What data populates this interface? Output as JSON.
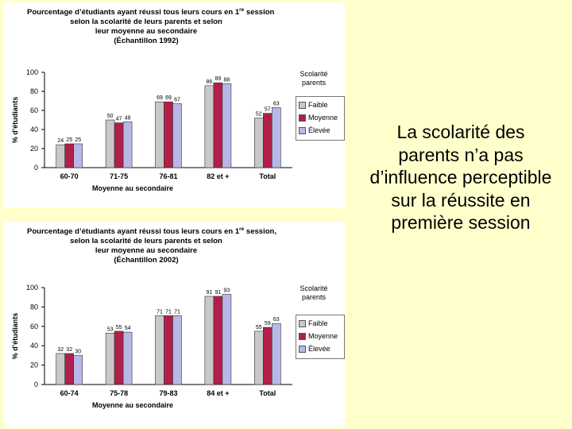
{
  "colors": {
    "background": "#FFFFCC",
    "faible": "#c8c8c8",
    "moyenne": "#b0204a",
    "elevee": "#b8b8e8"
  },
  "caption": "La scolarité des parents n’a pas d’influence perceptible sur la réussite en première session",
  "chart_data": [
    {
      "type": "bar",
      "title_lines": [
        "Pourcentage d’étudiants ayant réussi tous leurs cours en 1re session",
        "selon la scolarité de leurs parents et selon",
        "leur moyenne au secondaire",
        "(Échantillon 1992)"
      ],
      "ylabel": "% d’étudiants",
      "xlabel": "Moyenne au secondaire",
      "ylim": [
        0,
        100
      ],
      "yticks": [
        0,
        20,
        40,
        60,
        80,
        100
      ],
      "categories": [
        "60-70",
        "71-75",
        "76-81",
        "82 et +",
        "Total"
      ],
      "legend_title": "Scolarité parents",
      "series": [
        {
          "name": "Faible",
          "values": [
            24,
            50,
            69,
            86,
            52
          ]
        },
        {
          "name": "Moyenne",
          "values": [
            25,
            47,
            69,
            89,
            57
          ]
        },
        {
          "name": "Élevée",
          "values": [
            25,
            48,
            67,
            88,
            63
          ]
        }
      ]
    },
    {
      "type": "bar",
      "title_lines": [
        "Pourcentage d’étudiants ayant réussi tous leurs cours en 1re session,",
        "selon la scolarité de leurs parents et selon",
        "leur moyenne au secondaire",
        "(Échantillon 2002)"
      ],
      "ylabel": "% d’étudiants",
      "xlabel": "Moyenne au secondaire",
      "ylim": [
        0,
        100
      ],
      "yticks": [
        0,
        20,
        40,
        60,
        80,
        100
      ],
      "categories": [
        "60-74",
        "75-78",
        "79-83",
        "84 et +",
        "Total"
      ],
      "legend_title": "Scolarité parents",
      "series": [
        {
          "name": "Faible",
          "values": [
            32,
            53,
            71,
            91,
            55
          ]
        },
        {
          "name": "Moyenne",
          "values": [
            32,
            55,
            71,
            91,
            59
          ]
        },
        {
          "name": "Élevée",
          "values": [
            30,
            54,
            71,
            93,
            63
          ]
        }
      ]
    }
  ]
}
